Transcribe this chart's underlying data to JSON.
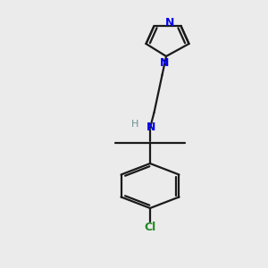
{
  "background_color": "#ebebeb",
  "bond_color": "#1a1a1a",
  "N_color": "#0000ee",
  "Cl_color": "#228822",
  "H_color": "#6a9090",
  "line_width": 1.6,
  "figsize": [
    3.0,
    3.0
  ],
  "dpi": 100,
  "xlim": [
    0,
    10
  ],
  "ylim": [
    0,
    15
  ]
}
